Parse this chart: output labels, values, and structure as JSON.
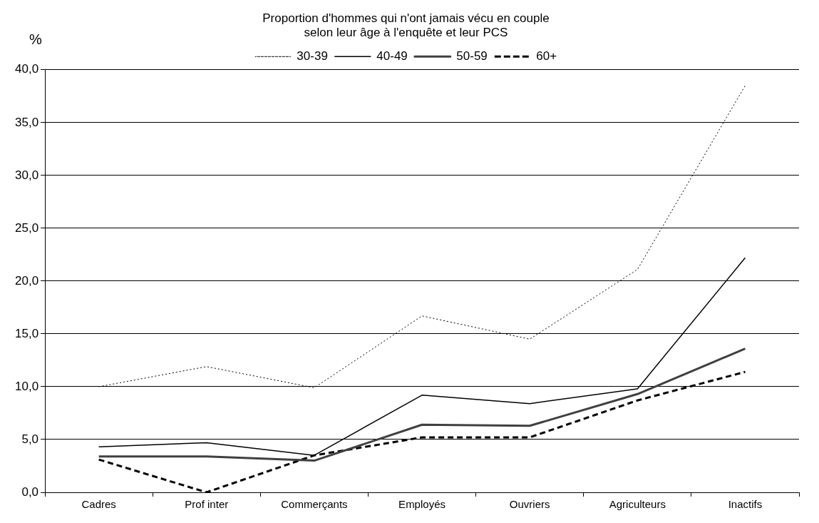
{
  "chart_data": {
    "type": "line",
    "title": "Proportion d'hommes qui n'ont jamais vécu en couple\nselon leur âge à l'enquête et leur PCS",
    "ylabel": "%",
    "categories": [
      "Cadres",
      "Prof inter",
      "Commerçants",
      "Employés",
      "Ouvriers",
      "Agriculteurs",
      "Inactifs"
    ],
    "series": [
      {
        "name": "30-39",
        "color": "#000000",
        "line_style": "dotted",
        "values": [
          10.0,
          11.9,
          9.9,
          16.7,
          14.5,
          21.1,
          38.5
        ]
      },
      {
        "name": "40-49",
        "color": "#000000",
        "line_style": "solid",
        "values": [
          4.3,
          4.7,
          3.5,
          9.2,
          8.4,
          9.8,
          22.2
        ]
      },
      {
        "name": "50-59",
        "color": "#404040",
        "line_style": "solid",
        "values": [
          3.4,
          3.4,
          3.0,
          6.4,
          6.3,
          9.3,
          13.6
        ]
      },
      {
        "name": "60+",
        "color": "#000000",
        "line_style": "dashed",
        "values": [
          3.1,
          0.0,
          3.5,
          5.2,
          5.2,
          8.7,
          11.4
        ]
      }
    ],
    "ylim": [
      0,
      40
    ],
    "yticks": [
      {
        "value": 0,
        "label": "0,0"
      },
      {
        "value": 5,
        "label": "5,0"
      },
      {
        "value": 10,
        "label": "10,0"
      },
      {
        "value": 15,
        "label": "15,0"
      },
      {
        "value": 20,
        "label": "20,0"
      },
      {
        "value": 25,
        "label": "25,0"
      },
      {
        "value": 30,
        "label": "30,0"
      },
      {
        "value": 35,
        "label": "35,0"
      },
      {
        "value": 40,
        "label": "40,0"
      }
    ],
    "grid": "y",
    "legend": "top",
    "marker": "none"
  }
}
